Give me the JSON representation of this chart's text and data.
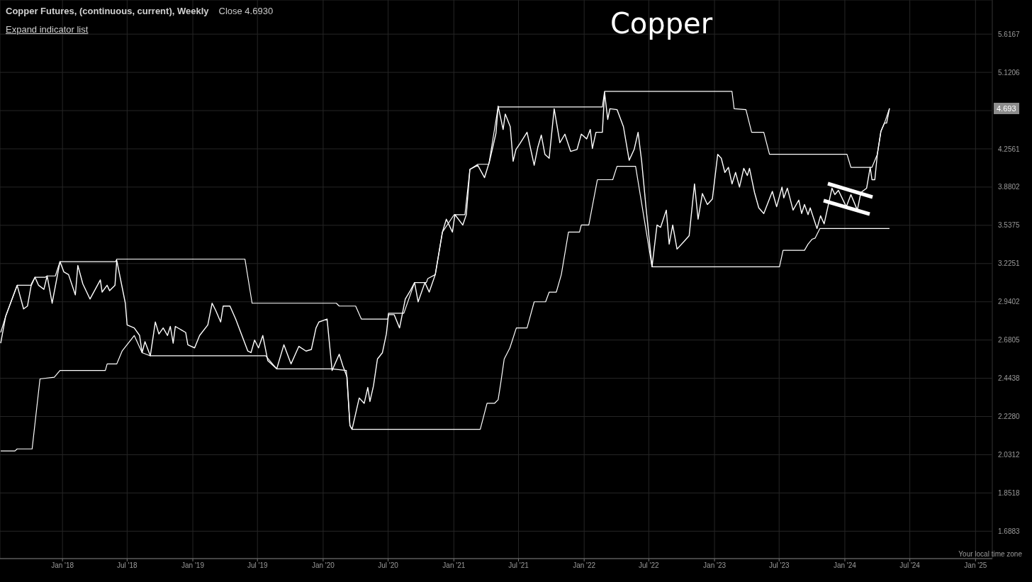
{
  "chart_data": {
    "type": "line",
    "title": "Copper",
    "subtitle": "Copper Futures, (continuous, current), Weekly",
    "annotations": [
      "Close 4.6930",
      "Expand indicator list",
      "Your local time zone",
      {
        "text": "4.693",
        "y": 4.693
      }
    ],
    "series": [
      {
        "color": "#ffffff",
        "x": [
          "2017-07-12",
          "2017-07-26",
          "2017-08-27",
          "2017-09-14",
          "2017-09-25",
          "2017-10-06",
          "2017-10-16",
          "2017-10-26",
          "2017-11-10",
          "2017-11-19",
          "2017-12-03",
          "2017-12-25",
          "2018-01-05",
          "2018-01-18",
          "2018-02-06",
          "2018-02-13",
          "2018-02-27",
          "2018-03-19",
          "2018-04-17",
          "2018-04-22",
          "2018-05-06",
          "2018-05-13",
          "2018-05-28",
          "2018-06-02",
          "2018-06-26",
          "2018-07-01",
          "2018-07-21",
          "2018-08-05",
          "2018-08-12",
          "2018-08-20",
          "2018-09-04",
          "2018-09-18",
          "2018-09-28",
          "2018-10-10",
          "2018-10-22",
          "2018-10-30",
          "2018-11-07",
          "2018-11-13",
          "2018-12-12",
          "2018-12-18",
          "2019-01-06",
          "2019-01-20",
          "2019-02-12",
          "2019-02-24",
          "2019-03-06",
          "2019-03-20",
          "2019-03-27",
          "2019-04-15",
          "2019-05-01",
          "2019-06-04",
          "2019-06-13",
          "2019-06-23",
          "2019-07-04",
          "2019-07-16",
          "2019-07-30",
          "2019-08-24",
          "2019-09-13",
          "2019-10-03",
          "2019-10-25",
          "2019-11-14",
          "2019-11-29",
          "2019-12-12",
          "2019-12-20",
          "2020-01-12",
          "2020-01-26",
          "2020-02-15",
          "2020-02-25",
          "2020-03-08",
          "2020-03-16",
          "2020-03-22",
          "2020-04-11",
          "2020-04-25",
          "2020-05-05",
          "2020-05-11",
          "2020-05-21",
          "2020-06-01",
          "2020-06-15",
          "2020-06-26",
          "2020-07-02",
          "2020-07-18",
          "2020-08-02",
          "2020-08-18",
          "2020-09-01",
          "2020-09-13",
          "2020-09-23",
          "2020-10-12",
          "2020-10-24",
          "2020-11-10",
          "2020-11-30",
          "2020-12-11",
          "2020-12-28",
          "2021-01-04",
          "2021-01-26",
          "2021-02-05",
          "2021-02-15",
          "2021-03-09",
          "2021-03-28",
          "2021-04-11",
          "2021-04-29",
          "2021-05-05",
          "2021-05-19",
          "2021-05-25",
          "2021-06-08",
          "2021-06-16",
          "2021-06-24",
          "2021-07-05",
          "2021-07-25",
          "2021-08-14",
          "2021-08-24",
          "2021-09-03",
          "2021-09-13",
          "2021-09-25",
          "2021-10-09",
          "2021-10-25",
          "2021-11-08",
          "2021-11-24",
          "2021-12-12",
          "2021-12-24",
          "2022-01-08",
          "2022-01-18",
          "2022-01-24",
          "2022-02-03",
          "2022-02-21",
          "2022-02-27",
          "2022-03-08",
          "2022-03-14",
          "2022-04-03",
          "2022-04-21",
          "2022-05-07",
          "2022-05-21",
          "2022-06-01",
          "2022-06-11",
          "2022-06-23",
          "2022-07-10",
          "2022-07-24",
          "2022-08-03",
          "2022-08-19",
          "2022-08-27",
          "2022-09-06",
          "2022-09-18",
          "2022-10-07",
          "2022-10-22",
          "2022-11-06",
          "2022-11-16",
          "2022-11-28",
          "2022-12-12",
          "2022-12-26",
          "2023-01-10",
          "2023-01-20",
          "2023-01-30",
          "2023-02-09",
          "2023-02-19",
          "2023-03-01",
          "2023-03-12",
          "2023-03-24",
          "2023-04-03",
          "2023-04-09",
          "2023-04-23",
          "2023-05-05",
          "2023-05-19",
          "2023-06-12",
          "2023-06-24",
          "2023-07-09",
          "2023-07-14",
          "2023-07-24",
          "2023-08-09",
          "2023-08-25",
          "2023-09-02",
          "2023-09-10",
          "2023-09-20",
          "2023-09-26",
          "2023-10-15",
          "2023-10-25",
          "2023-11-04",
          "2023-11-18",
          "2023-11-26",
          "2023-12-04",
          "2023-12-14",
          "2024-01-05",
          "2024-01-18",
          "2024-02-05",
          "2024-02-15",
          "2024-03-02",
          "2024-03-12",
          "2024-03-17",
          "2024-03-25",
          "2024-04-01",
          "2024-04-11",
          "2024-04-21",
          "2024-04-27",
          "2024-05-05"
        ],
        "values": [
          2.66,
          2.84,
          3.06,
          2.89,
          2.91,
          3.07,
          3.12,
          3.06,
          3.03,
          3.13,
          2.93,
          3.24,
          3.16,
          3.14,
          2.99,
          3.21,
          3.07,
          2.96,
          3.1,
          3.01,
          3.06,
          3.02,
          3.06,
          3.25,
          2.93,
          2.78,
          2.76,
          2.71,
          2.6,
          2.67,
          2.58,
          2.8,
          2.72,
          2.76,
          2.71,
          2.77,
          2.66,
          2.77,
          2.73,
          2.65,
          2.63,
          2.71,
          2.78,
          2.93,
          2.88,
          2.8,
          2.91,
          2.91,
          2.82,
          2.61,
          2.6,
          2.68,
          2.63,
          2.71,
          2.55,
          2.5,
          2.65,
          2.53,
          2.64,
          2.61,
          2.62,
          2.76,
          2.8,
          2.82,
          2.49,
          2.59,
          2.52,
          2.45,
          2.18,
          2.16,
          2.33,
          2.3,
          2.39,
          2.31,
          2.4,
          2.56,
          2.6,
          2.72,
          2.85,
          2.85,
          2.76,
          2.96,
          3.02,
          3.08,
          2.94,
          3.08,
          3.01,
          3.14,
          3.48,
          3.59,
          3.48,
          3.63,
          3.54,
          3.63,
          4.05,
          4.09,
          3.97,
          4.13,
          4.42,
          4.72,
          4.46,
          4.63,
          4.49,
          4.13,
          4.25,
          4.31,
          4.43,
          4.09,
          4.27,
          4.4,
          4.2,
          4.16,
          4.69,
          4.32,
          4.41,
          4.23,
          4.25,
          4.41,
          4.36,
          4.46,
          4.26,
          4.43,
          4.43,
          4.88,
          4.57,
          4.69,
          4.68,
          4.49,
          4.14,
          4.25,
          4.43,
          4.13,
          3.7,
          3.2,
          3.54,
          3.52,
          3.67,
          3.38,
          3.54,
          3.34,
          3.4,
          3.45,
          3.91,
          3.59,
          3.82,
          3.72,
          3.77,
          4.2,
          4.16,
          4.02,
          4.07,
          3.91,
          4.02,
          3.88,
          4.06,
          3.99,
          4.06,
          3.83,
          3.69,
          3.64,
          3.84,
          3.7,
          3.88,
          3.78,
          3.87,
          3.67,
          3.76,
          3.64,
          3.72,
          3.63,
          3.69,
          3.51,
          3.62,
          3.55,
          3.75,
          3.87,
          3.81,
          3.85,
          3.7,
          3.81,
          3.67,
          3.83,
          3.87,
          4.07,
          3.95,
          3.95,
          4.2,
          4.44,
          4.53,
          4.53,
          4.693
        ]
      },
      {
        "color": "#ffffff",
        "x": [
          "2017-07-12",
          "2017-07-26",
          "2017-08-27",
          "2017-10-06",
          "2017-10-16",
          "2017-11-14",
          "2017-11-19",
          "2017-12-12",
          "2017-12-25",
          "2018-05-30",
          "2018-06-02",
          "2019-05-27",
          "2019-06-16",
          "2020-02-07",
          "2020-02-15",
          "2020-04-01",
          "2020-04-17",
          "2020-06-30",
          "2020-07-02",
          "2020-08-14",
          "2020-09-13",
          "2020-10-16",
          "2020-10-20",
          "2020-11-10",
          "2020-11-30",
          "2021-01-02",
          "2021-02-01",
          "2021-02-15",
          "2021-03-09",
          "2021-04-09",
          "2021-05-05",
          "2022-02-21",
          "2022-02-27",
          "2023-02-19",
          "2023-02-25",
          "2023-03-30",
          "2023-04-15",
          "2023-05-19",
          "2023-06-04",
          "2024-01-07",
          "2024-01-18",
          "2024-03-17",
          "2024-04-01",
          "2024-04-11",
          "2024-04-21",
          "2024-05-05"
        ],
        "values": [
          2.73,
          2.84,
          3.06,
          3.06,
          3.12,
          3.12,
          3.13,
          3.13,
          3.24,
          3.24,
          3.26,
          3.26,
          2.93,
          2.93,
          2.91,
          2.91,
          2.82,
          2.82,
          2.86,
          2.86,
          3.08,
          3.08,
          3.11,
          3.14,
          3.48,
          3.63,
          3.63,
          4.05,
          4.1,
          4.1,
          4.71,
          4.71,
          4.89,
          4.89,
          4.69,
          4.68,
          4.43,
          4.43,
          4.2,
          4.2,
          4.07,
          4.07,
          4.2,
          4.44,
          4.53,
          4.693
        ]
      },
      {
        "color": "#ffffff",
        "x": [
          "2017-07-12",
          "2017-08-21",
          "2017-08-27",
          "2017-10-08",
          "2017-10-30",
          "2017-12-09",
          "2017-12-25",
          "2018-05-01",
          "2018-05-06",
          "2018-06-02",
          "2018-06-17",
          "2018-07-21",
          "2018-08-12",
          "2018-09-04",
          "2019-07-24",
          "2019-08-24",
          "2020-01-26",
          "2020-03-06",
          "2020-03-16",
          "2020-03-22",
          "2021-03-16",
          "2021-04-04",
          "2021-04-25",
          "2021-05-05",
          "2021-05-12",
          "2021-05-22",
          "2021-06-07",
          "2021-06-25",
          "2021-07-25",
          "2021-08-14",
          "2021-09-15",
          "2021-09-25",
          "2021-10-15",
          "2021-10-29",
          "2021-11-18",
          "2021-12-19",
          "2021-12-24",
          "2022-01-14",
          "2022-02-07",
          "2022-03-22",
          "2022-04-03",
          "2022-05-25",
          "2022-07-10",
          "2023-07-02",
          "2023-07-12",
          "2023-09-10",
          "2023-09-20",
          "2023-10-01",
          "2023-10-10",
          "2023-10-23",
          "2024-05-05"
        ],
        "values": [
          2.05,
          2.05,
          2.06,
          2.06,
          2.44,
          2.45,
          2.49,
          2.49,
          2.53,
          2.53,
          2.61,
          2.71,
          2.6,
          2.58,
          2.58,
          2.5,
          2.5,
          2.49,
          2.18,
          2.16,
          2.16,
          2.3,
          2.3,
          2.32,
          2.41,
          2.56,
          2.63,
          2.76,
          2.76,
          2.94,
          2.94,
          3.01,
          3.01,
          3.14,
          3.48,
          3.48,
          3.54,
          3.54,
          3.95,
          3.95,
          4.08,
          4.08,
          3.2,
          3.2,
          3.33,
          3.33,
          3.38,
          3.42,
          3.43,
          3.51,
          3.51
        ]
      }
    ],
    "log": true,
    "xlim": [
      "2017-07-10",
      "2025-02-17"
    ],
    "xticks": [
      {
        "value": "2018-01-01",
        "label": "Jan '18"
      },
      {
        "value": "2018-07-01",
        "label": "Jul '18"
      },
      {
        "value": "2019-01-01",
        "label": "Jan '19"
      },
      {
        "value": "2019-07-01",
        "label": "Jul '19"
      },
      {
        "value": "2020-01-01",
        "label": "Jan '20"
      },
      {
        "value": "2020-07-01",
        "label": "Jul '20"
      },
      {
        "value": "2021-01-01",
        "label": "Jan '21"
      },
      {
        "value": "2021-07-01",
        "label": "Jul '21"
      },
      {
        "value": "2022-01-01",
        "label": "Jan '22"
      },
      {
        "value": "2022-07-01",
        "label": "Jul '22"
      },
      {
        "value": "2023-01-01",
        "label": "Jan '23"
      },
      {
        "value": "2023-07-01",
        "label": "Jul '23"
      },
      {
        "value": "2024-01-01",
        "label": "Jan '24"
      },
      {
        "value": "2024-07-01",
        "label": "Jul '24"
      },
      {
        "value": "2025-01-01",
        "label": "Jan '25"
      }
    ],
    "ylim": [
      1.58,
      6.1
    ],
    "yticks": [
      1.6883,
      1.8518,
      2.0312,
      {
        "value": 2.228,
        "label": "2.2280"
      },
      2.4438,
      2.6805,
      2.9402,
      3.2251,
      3.5375,
      3.8802,
      4.2561,
      {
        "value": 4.668,
        "label": null
      },
      5.1206,
      5.6167
    ],
    "grid": true,
    "marker": "none",
    "line_style": "solid"
  }
}
